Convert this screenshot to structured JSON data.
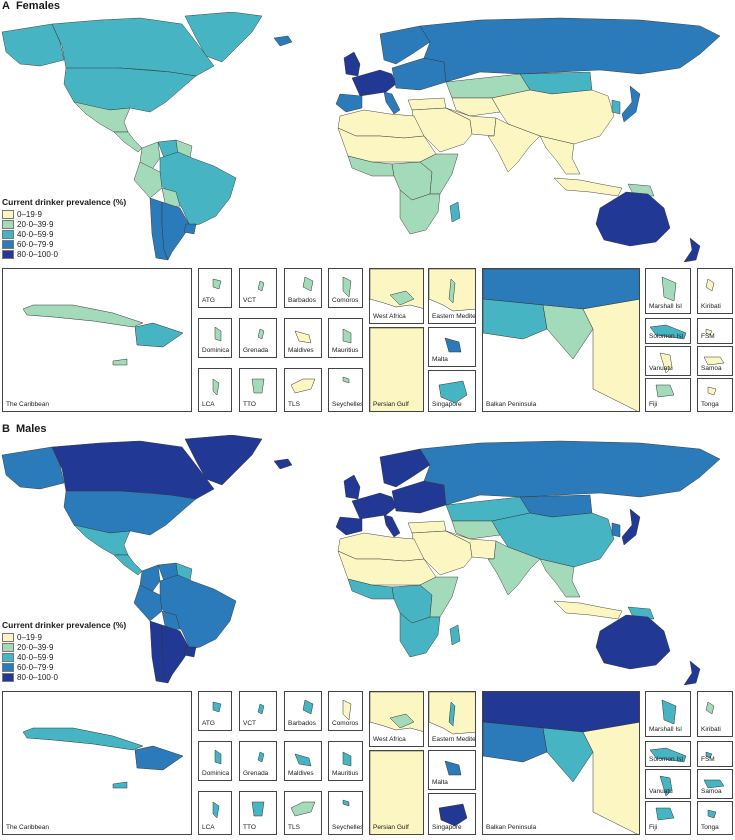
{
  "colors": {
    "c0": "#fbf6c2",
    "c1": "#a3dab9",
    "c2": "#46b4c2",
    "c3": "#2b7bba",
    "c4": "#213995",
    "ocean": "#ffffff",
    "border": "#333333"
  },
  "legend": {
    "title": "Current drinker prevalence (%)",
    "bins": [
      {
        "label": "0–19·9",
        "color_key": "c0"
      },
      {
        "label": "20·0–39·9",
        "color_key": "c1"
      },
      {
        "label": "40·0–59·9",
        "color_key": "c2"
      },
      {
        "label": "60·0–79·9",
        "color_key": "c3"
      },
      {
        "label": "80·0–100·0",
        "color_key": "c4"
      }
    ]
  },
  "panels": [
    {
      "letter": "A",
      "title": "Females",
      "regions": {
        "canada": "c2",
        "alaska": "c2",
        "usa": "c2",
        "greenland": "c2",
        "mexico": "c1",
        "centam": "c1",
        "colombia": "c1",
        "venezuela": "c2",
        "guianas": "c1",
        "brazil": "c2",
        "peru": "c1",
        "bolivia": "c1",
        "chile": "c3",
        "argentina": "c3",
        "uruguay": "c3",
        "uk": "c4",
        "iceland": "c3",
        "scandinavia": "c3",
        "westeu": "c4",
        "easteu": "c3",
        "russia": "c3",
        "iberia": "c3",
        "italy": "c3",
        "turkey": "c0",
        "kazakh": "c1",
        "centralasia": "c0",
        "mideast": "c0",
        "iran": "c0",
        "southasia": "c0",
        "mongolia": "c2",
        "china": "c0",
        "korea": "c2",
        "japan": "c3",
        "seasia": "c0",
        "indonesia": "c0",
        "png": "c1",
        "australia": "c4",
        "nz": "c4",
        "nafrica": "c0",
        "sahel": "c0",
        "westafrica": "c1",
        "centafrica": "c1",
        "eastafrica": "c1",
        "southafrica": "c1",
        "madagascar": "c2"
      },
      "insets": [
        {
          "label": "The Caribbean",
          "values": [
            "c1",
            "c2",
            "c1"
          ]
        },
        {
          "label": "ATG",
          "values": [
            "c1"
          ]
        },
        {
          "label": "VCT",
          "values": [
            "c1"
          ]
        },
        {
          "label": "Barbados",
          "values": [
            "c1"
          ]
        },
        {
          "label": "Comoros",
          "values": [
            "c1"
          ]
        },
        {
          "label": "Dominica",
          "values": [
            "c1"
          ]
        },
        {
          "label": "Grenada",
          "values": [
            "c1"
          ]
        },
        {
          "label": "Maldives",
          "values": [
            "c0"
          ]
        },
        {
          "label": "Mauritius",
          "values": [
            "c1"
          ]
        },
        {
          "label": "LCA",
          "values": [
            "c1"
          ]
        },
        {
          "label": "TTO",
          "values": [
            "c1"
          ]
        },
        {
          "label": "TLS",
          "values": [
            "c0"
          ]
        },
        {
          "label": "Seychelles",
          "values": [
            "c1"
          ]
        },
        {
          "label": "West Africa",
          "values": [
            "c0",
            "c1"
          ]
        },
        {
          "label": "Eastern Mediterranean",
          "values": [
            "c0",
            "c1"
          ]
        },
        {
          "label": "Persian Gulf",
          "values": [
            "c0"
          ]
        },
        {
          "label": "Malta",
          "values": [
            "c3"
          ]
        },
        {
          "label": "Singapore",
          "values": [
            "c2"
          ]
        },
        {
          "label": "Balkan Peninsula",
          "values": [
            "c3",
            "c2",
            "c1",
            "c0"
          ]
        },
        {
          "label": "Marshall Isl",
          "values": [
            "c1"
          ]
        },
        {
          "label": "Kiribati",
          "values": [
            "c0"
          ]
        },
        {
          "label": "Solomon Isl",
          "values": [
            "c2"
          ]
        },
        {
          "label": "FSM",
          "values": [
            "c0"
          ]
        },
        {
          "label": "Vanuatu",
          "values": [
            "c0"
          ]
        },
        {
          "label": "Samoa",
          "values": [
            "c0"
          ]
        },
        {
          "label": "Fiji",
          "values": [
            "c1"
          ]
        },
        {
          "label": "Tonga",
          "values": [
            "c0"
          ]
        }
      ]
    },
    {
      "letter": "B",
      "title": "Males",
      "regions": {
        "canada": "c4",
        "alaska": "c3",
        "usa": "c3",
        "greenland": "c4",
        "mexico": "c2",
        "centam": "c2",
        "colombia": "c3",
        "venezuela": "c3",
        "guianas": "c2",
        "brazil": "c3",
        "peru": "c3",
        "bolivia": "c3",
        "chile": "c4",
        "argentina": "c4",
        "uruguay": "c4",
        "uk": "c4",
        "iceland": "c4",
        "scandinavia": "c4",
        "westeu": "c4",
        "easteu": "c4",
        "russia": "c3",
        "iberia": "c4",
        "italy": "c4",
        "turkey": "c0",
        "kazakh": "c2",
        "centralasia": "c1",
        "mideast": "c0",
        "iran": "c0",
        "southasia": "c1",
        "mongolia": "c3",
        "china": "c2",
        "korea": "c3",
        "japan": "c4",
        "seasia": "c1",
        "indonesia": "c0",
        "png": "c2",
        "australia": "c4",
        "nz": "c4",
        "nafrica": "c0",
        "sahel": "c0",
        "westafrica": "c2",
        "centafrica": "c2",
        "eastafrica": "c1",
        "southafrica": "c2",
        "madagascar": "c2"
      },
      "insets": [
        {
          "label": "The Caribbean",
          "values": [
            "c2",
            "c3",
            "c2"
          ]
        },
        {
          "label": "ATG",
          "values": [
            "c2"
          ]
        },
        {
          "label": "VCT",
          "values": [
            "c2"
          ]
        },
        {
          "label": "Barbados",
          "values": [
            "c2"
          ]
        },
        {
          "label": "Comoros",
          "values": [
            "c0"
          ]
        },
        {
          "label": "Dominica",
          "values": [
            "c2"
          ]
        },
        {
          "label": "Grenada",
          "values": [
            "c2"
          ]
        },
        {
          "label": "Maldives",
          "values": [
            "c2"
          ]
        },
        {
          "label": "Mauritius",
          "values": [
            "c2"
          ]
        },
        {
          "label": "LCA",
          "values": [
            "c2"
          ]
        },
        {
          "label": "TTO",
          "values": [
            "c2"
          ]
        },
        {
          "label": "TLS",
          "values": [
            "c1"
          ]
        },
        {
          "label": "Seychelles",
          "values": [
            "c2"
          ]
        },
        {
          "label": "West Africa",
          "values": [
            "c0",
            "c1"
          ]
        },
        {
          "label": "Eastern Mediterranean",
          "values": [
            "c0",
            "c2"
          ]
        },
        {
          "label": "Persian Gulf",
          "values": [
            "c0"
          ]
        },
        {
          "label": "Malta",
          "values": [
            "c3"
          ]
        },
        {
          "label": "Singapore",
          "values": [
            "c4"
          ]
        },
        {
          "label": "Balkan Peninsula",
          "values": [
            "c4",
            "c3",
            "c2",
            "c0"
          ]
        },
        {
          "label": "Marshall Isl",
          "values": [
            "c2"
          ]
        },
        {
          "label": "Kiribati",
          "values": [
            "c1"
          ]
        },
        {
          "label": "Solomon Isl",
          "values": [
            "c2"
          ]
        },
        {
          "label": "FSM",
          "values": [
            "c2"
          ]
        },
        {
          "label": "Vanuatu",
          "values": [
            "c2"
          ]
        },
        {
          "label": "Samoa",
          "values": [
            "c2"
          ]
        },
        {
          "label": "Fiji",
          "values": [
            "c2"
          ]
        },
        {
          "label": "Tonga",
          "values": [
            "c2"
          ]
        }
      ]
    }
  ]
}
